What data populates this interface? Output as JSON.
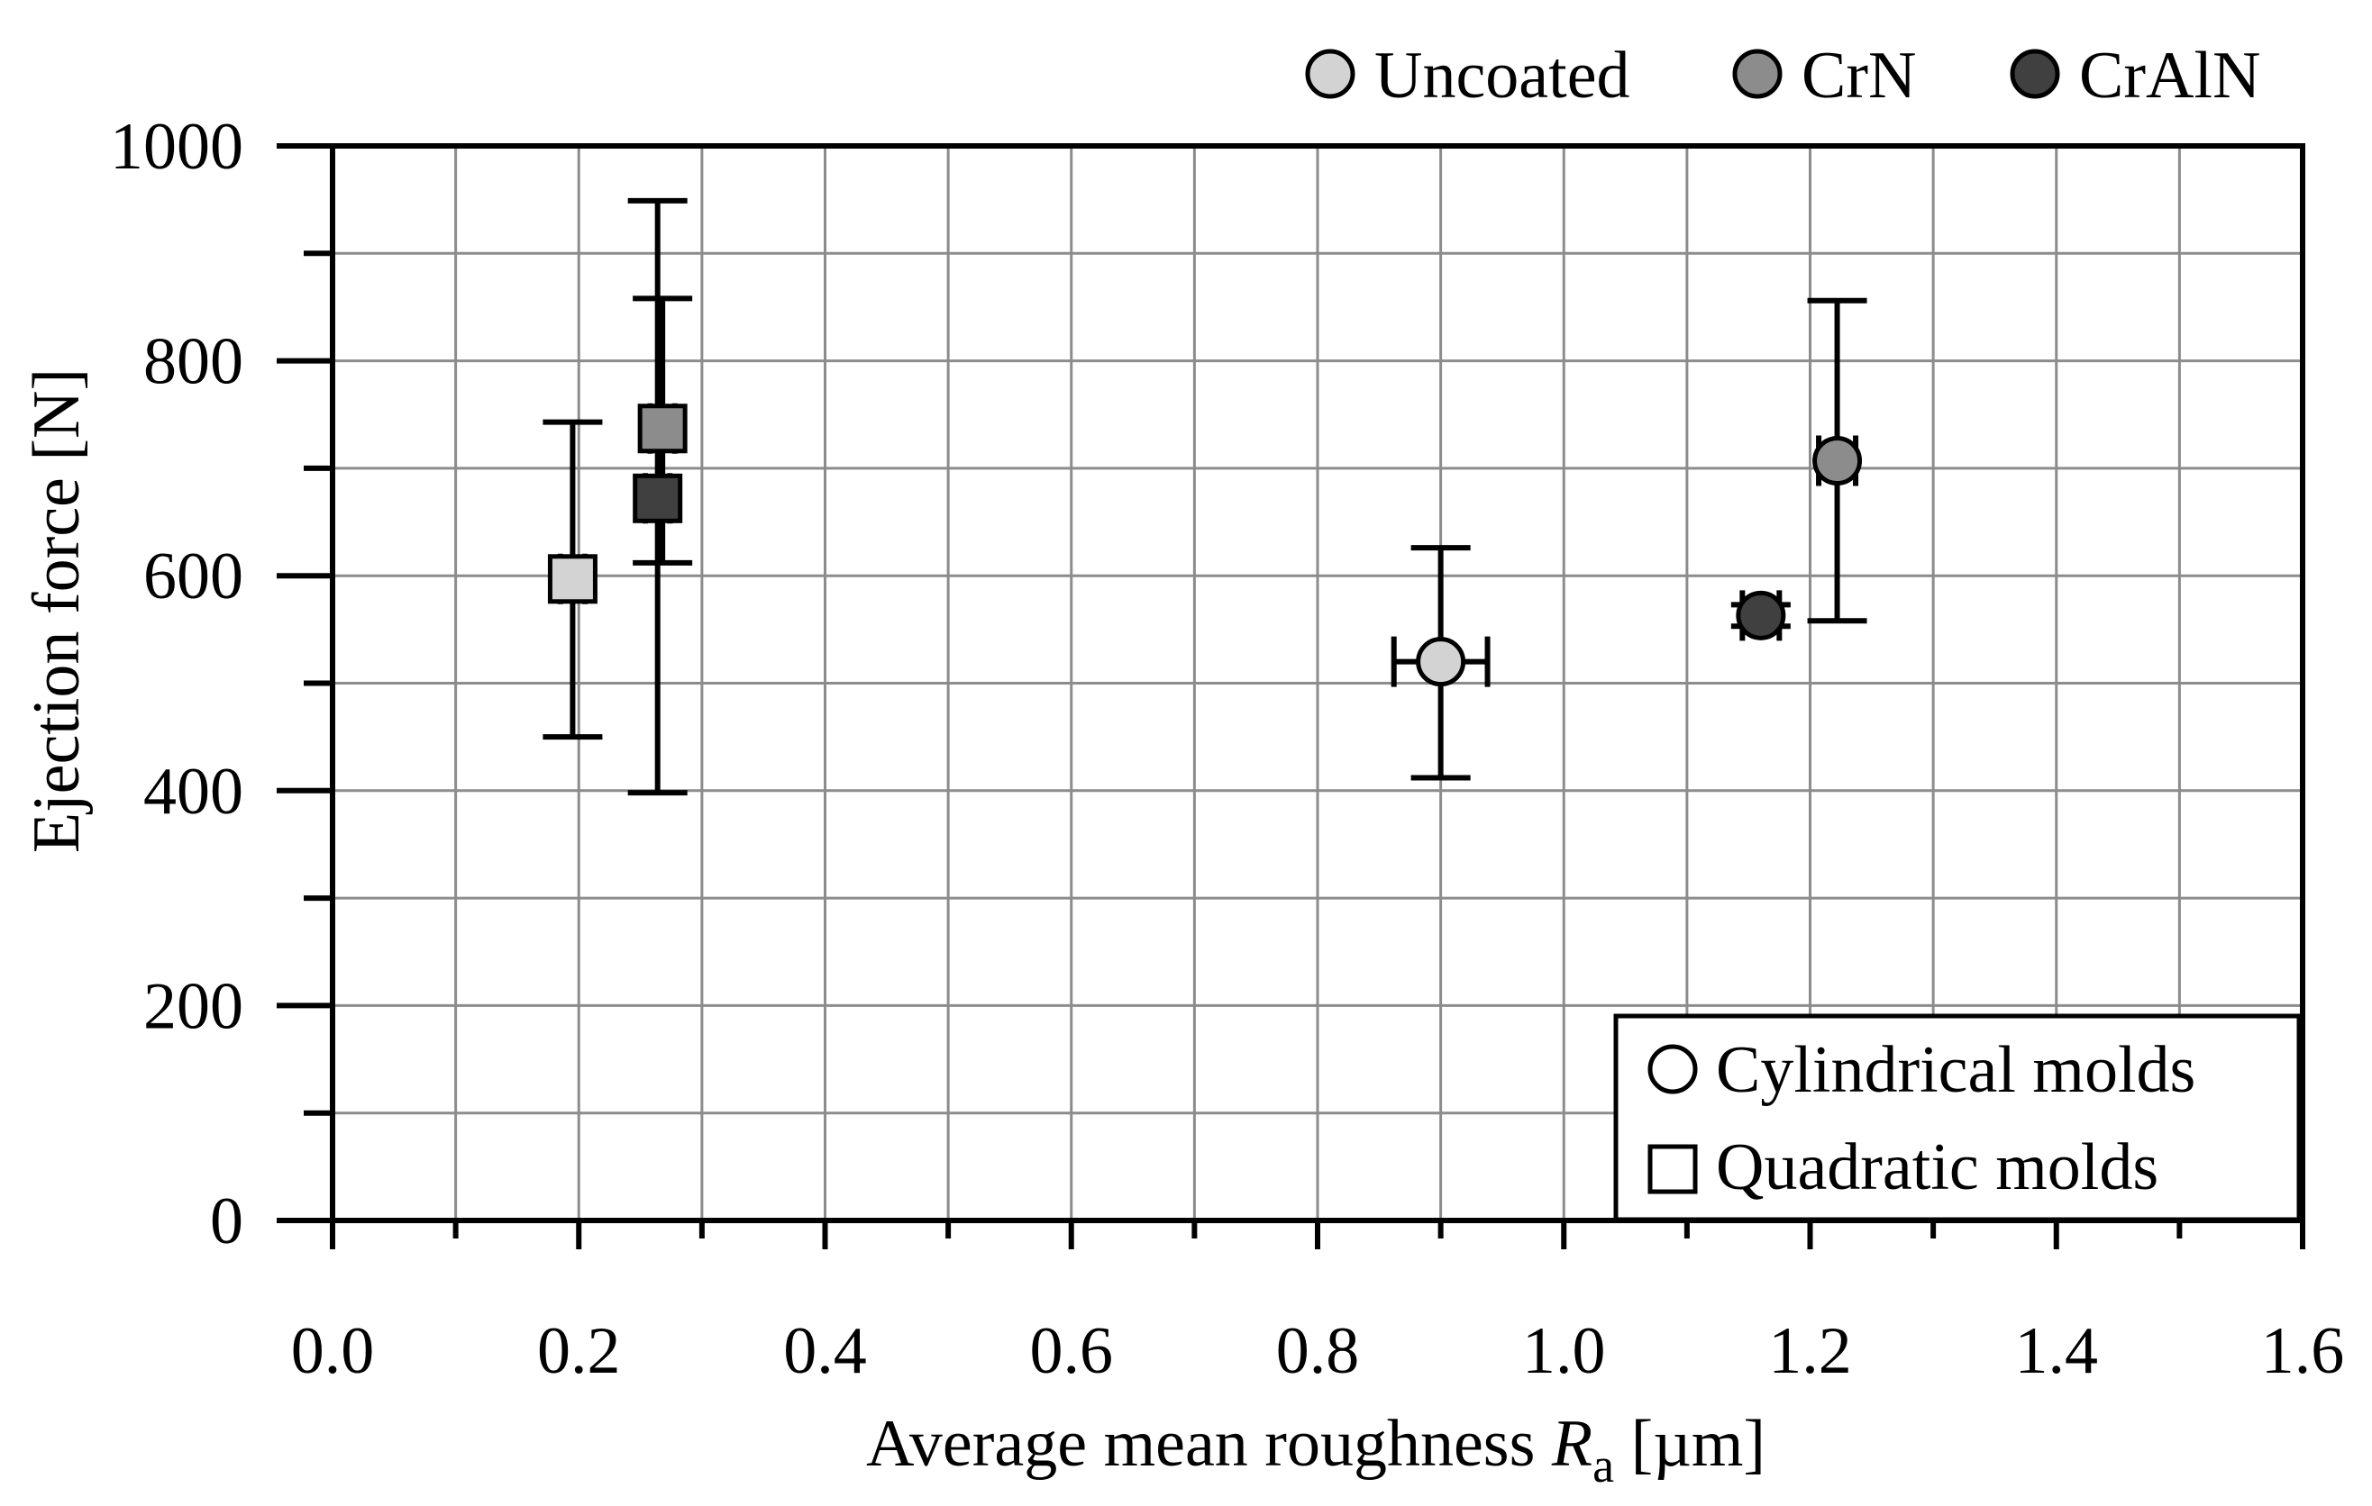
{
  "chart_data": {
    "type": "scatter",
    "xlabel": "Average mean roughness",
    "xlabel_symbol": "R",
    "xlabel_subscript": "a",
    "xlabel_unit": "[µm]",
    "ylabel": "Ejection force [N]",
    "xlim": [
      0.0,
      1.6
    ],
    "ylim": [
      0,
      1000
    ],
    "x_ticks": [
      "0.0",
      "0.2",
      "0.4",
      "0.6",
      "0.8",
      "1.0",
      "1.2",
      "1.4",
      "1.6"
    ],
    "y_ticks": [
      "0",
      "200",
      "400",
      "600",
      "800",
      "1000"
    ],
    "grid": true,
    "coating_legend": [
      {
        "name": "Uncoated",
        "color": "#d3d3d3"
      },
      {
        "name": "CrN",
        "color": "#8c8c8c"
      },
      {
        "name": "CrAlN",
        "color": "#404040"
      }
    ],
    "shape_legend": [
      {
        "name": "Cylindrical molds",
        "marker": "circle"
      },
      {
        "name": "Quadratic molds",
        "marker": "square"
      }
    ],
    "points": [
      {
        "coating": "Uncoated",
        "mold": "Quadratic",
        "x": 0.195,
        "y": 597,
        "y_low": 450,
        "y_high": 743,
        "x_low": 0.185,
        "x_high": 0.205
      },
      {
        "coating": "CrN",
        "mold": "Quadratic",
        "x": 0.268,
        "y": 737,
        "y_low": 612,
        "y_high": 858,
        "x_low": 0.258,
        "x_high": 0.278
      },
      {
        "coating": "CrAlN",
        "mold": "Quadratic",
        "x": 0.264,
        "y": 672,
        "y_low": 398,
        "y_high": 949,
        "x_low": 0.254,
        "x_high": 0.274
      },
      {
        "coating": "Uncoated",
        "mold": "Cylindrical",
        "x": 0.9,
        "y": 520,
        "y_low": 412,
        "y_high": 626,
        "x_low": 0.862,
        "x_high": 0.938
      },
      {
        "coating": "CrN",
        "mold": "Cylindrical",
        "x": 1.222,
        "y": 707,
        "y_low": 558,
        "y_high": 856,
        "x_low": 1.207,
        "x_high": 1.237
      },
      {
        "coating": "CrAlN",
        "mold": "Cylindrical",
        "x": 1.16,
        "y": 563,
        "y_low": 553,
        "y_high": 573,
        "x_low": 1.145,
        "x_high": 1.175
      }
    ]
  }
}
